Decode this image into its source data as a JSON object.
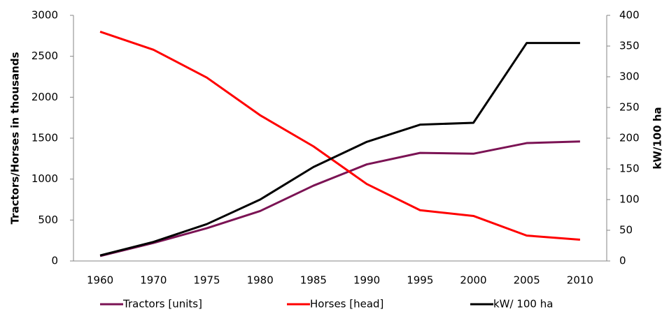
{
  "chart_data": {
    "type": "line",
    "y_label": "Tractors/Horses in thousands",
    "y2_label": "kW/100 ha",
    "categories": [
      "1960",
      "1970",
      "1975",
      "1980",
      "1985",
      "1990",
      "1995",
      "2000",
      "2005",
      "2010"
    ],
    "series": [
      {
        "name": "Tractors [units]",
        "color": "#7b1354",
        "values": [
          60,
          220,
          400,
          610,
          920,
          1180,
          1320,
          1310,
          1440,
          1460
        ]
      },
      {
        "name": "Horses [head]",
        "color": "#ff0000",
        "values": [
          2800,
          2580,
          2240,
          1780,
          1400,
          940,
          620,
          550,
          310,
          260
        ]
      },
      {
        "name": "kW/ 100 ha",
        "color": "#000000",
        "axis": "y2",
        "values": [
          9,
          31,
          60,
          100,
          153,
          194,
          222,
          225,
          355,
          355
        ]
      }
    ],
    "ylim": [
      0,
      3000
    ],
    "yticks": [
      0,
      500,
      1000,
      1500,
      2000,
      2500,
      3000
    ],
    "y2lim": [
      0,
      400
    ],
    "y2ticks": [
      0,
      50,
      100,
      150,
      200,
      250,
      300,
      350,
      400
    ],
    "grid": false,
    "legend": "bottom"
  }
}
